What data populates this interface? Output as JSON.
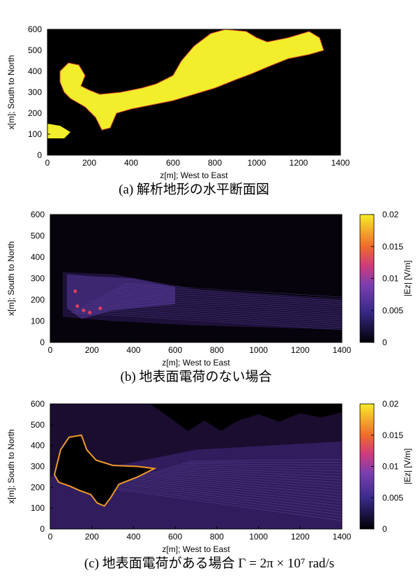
{
  "panels": [
    {
      "caption": "(a) 解析地形の水平断面図",
      "xlabel": "z[m]; West to East",
      "ylabel": "x[m]; South to North",
      "xlim": [
        0,
        1400
      ],
      "ylim": [
        0,
        600
      ],
      "xticks": [
        0,
        200,
        400,
        600,
        800,
        1000,
        1200,
        1400
      ],
      "yticks": [
        0,
        100,
        200,
        300,
        400,
        500,
        600
      ]
    },
    {
      "caption": "(b) 地表面電荷のない場合",
      "xlabel": "z[m]; West to East",
      "ylabel": "x[m]; South to North",
      "xlim": [
        0,
        1400
      ],
      "ylim": [
        0,
        600
      ],
      "xticks": [
        0,
        200,
        400,
        600,
        800,
        1000,
        1200,
        1400
      ],
      "yticks": [
        0,
        100,
        200,
        300,
        400,
        500,
        600
      ],
      "colorbar": {
        "label": "|Ez| [V/m]",
        "lim": [
          0,
          0.02
        ],
        "ticks": [
          0,
          0.005,
          0.01,
          0.015,
          0.02
        ]
      }
    },
    {
      "caption": "(c) 地表面電荷がある場合 Γ = 2π × 10⁷ rad/s",
      "xlabel": "z[m]; West to East",
      "ylabel": "x[m]; South to North",
      "xlim": [
        0,
        1400
      ],
      "ylim": [
        0,
        600
      ],
      "xticks": [
        0,
        200,
        400,
        600,
        800,
        1000,
        1200,
        1400
      ],
      "yticks": [
        0,
        100,
        200,
        300,
        400,
        500,
        600
      ],
      "colorbar": {
        "label": "|Ez| [V/m]",
        "lim": [
          0,
          0.02
        ],
        "ticks": [
          0,
          0.005,
          0.01,
          0.015,
          0.02
        ]
      }
    }
  ]
}
